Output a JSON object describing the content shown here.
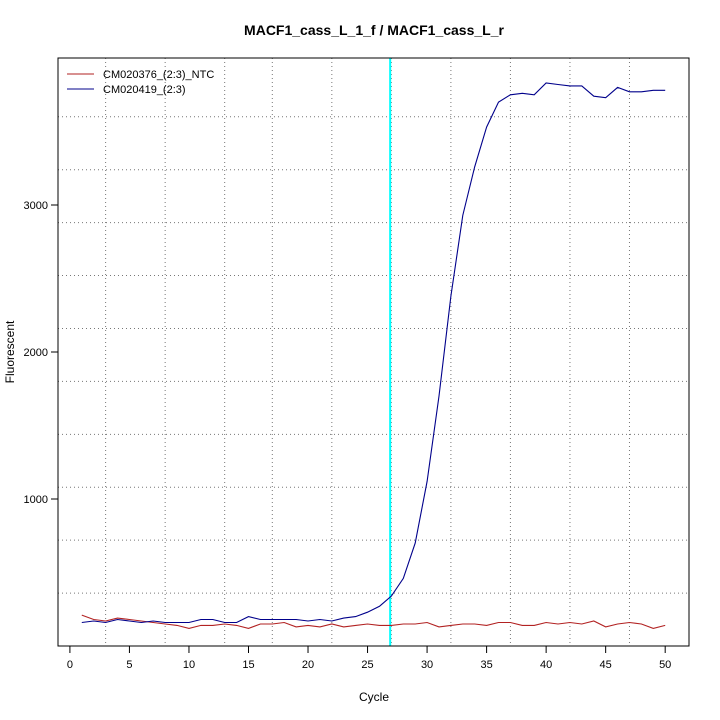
{
  "chart_data": {
    "type": "line",
    "title": "MACF1_cass_L_1_f / MACF1_cass_L_r",
    "xlabel": "Cycle",
    "ylabel": "Fluorescent",
    "xlim": [
      -1,
      52
    ],
    "ylim": [
      0,
      4000
    ],
    "x_ticks": [
      0,
      5,
      10,
      15,
      20,
      25,
      30,
      35,
      40,
      45,
      50
    ],
    "y_ticks": [
      1000,
      2000,
      3000
    ],
    "x_grid": [
      3,
      8,
      13,
      17,
      22,
      27,
      32,
      37,
      42,
      47
    ],
    "y_grid": [
      360,
      720,
      1080,
      1440,
      1800,
      2160,
      2520,
      2880,
      3240,
      3600
    ],
    "grid": true,
    "legend_position": "top-left",
    "threshold_line": {
      "x": 26.9,
      "color": "#00ffff"
    },
    "series": [
      {
        "name": "CM020376_(2:3)_NTC",
        "color": "#b22222",
        "x": [
          1,
          2,
          3,
          4,
          5,
          6,
          7,
          8,
          9,
          10,
          11,
          12,
          13,
          14,
          15,
          16,
          17,
          18,
          19,
          20,
          21,
          22,
          23,
          24,
          25,
          26,
          27,
          28,
          29,
          30,
          31,
          32,
          33,
          34,
          35,
          36,
          37,
          38,
          39,
          40,
          41,
          42,
          43,
          44,
          45,
          46,
          47,
          48,
          49,
          50
        ],
        "values": [
          210,
          180,
          170,
          190,
          180,
          170,
          160,
          150,
          140,
          120,
          140,
          140,
          150,
          140,
          120,
          150,
          150,
          160,
          130,
          140,
          130,
          150,
          130,
          140,
          150,
          140,
          140,
          150,
          150,
          160,
          130,
          140,
          150,
          150,
          140,
          160,
          160,
          140,
          140,
          160,
          150,
          160,
          150,
          170,
          130,
          150,
          160,
          150,
          120,
          140
        ]
      },
      {
        "name": "CM020419_(2:3)",
        "color": "#00008b",
        "x": [
          1,
          2,
          3,
          4,
          5,
          6,
          7,
          8,
          9,
          10,
          11,
          12,
          13,
          14,
          15,
          16,
          17,
          18,
          19,
          20,
          21,
          22,
          23,
          24,
          25,
          26,
          27,
          28,
          29,
          30,
          31,
          32,
          33,
          34,
          35,
          36,
          37,
          38,
          39,
          40,
          41,
          42,
          43,
          44,
          45,
          46,
          47,
          48,
          49,
          50
        ],
        "values": [
          160,
          170,
          160,
          180,
          170,
          160,
          170,
          160,
          160,
          160,
          180,
          180,
          160,
          160,
          200,
          180,
          180,
          180,
          180,
          170,
          180,
          170,
          190,
          200,
          230,
          270,
          340,
          460,
          700,
          1120,
          1700,
          2380,
          2930,
          3260,
          3530,
          3700,
          3750,
          3760,
          3750,
          3830,
          3820,
          3810,
          3810,
          3740,
          3730,
          3800,
          3770,
          3770,
          3780,
          3780
        ]
      }
    ]
  }
}
